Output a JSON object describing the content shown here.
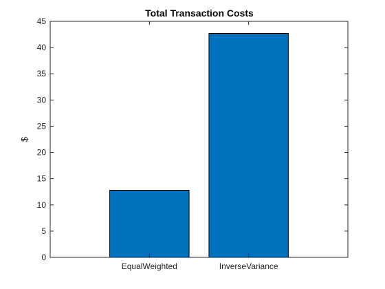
{
  "chart_data": {
    "type": "bar",
    "title": "Total Transaction Costs",
    "xlabel": "",
    "ylabel": "$",
    "categories": [
      "EqualWeighted",
      "InverseVariance"
    ],
    "values": [
      12.8,
      42.7
    ],
    "ylim": [
      0,
      45
    ],
    "yticks": [
      0,
      5,
      10,
      15,
      20,
      25,
      30,
      35,
      40,
      45
    ],
    "ytick_labels": [
      "0",
      "5",
      "10",
      "15",
      "20",
      "25",
      "30",
      "35",
      "40",
      "45"
    ],
    "xlim": [
      0,
      3
    ],
    "grid": false,
    "legend": "none",
    "colors": {
      "bar": "#0072BD",
      "edge": "#000000",
      "axis": "#262626"
    }
  }
}
